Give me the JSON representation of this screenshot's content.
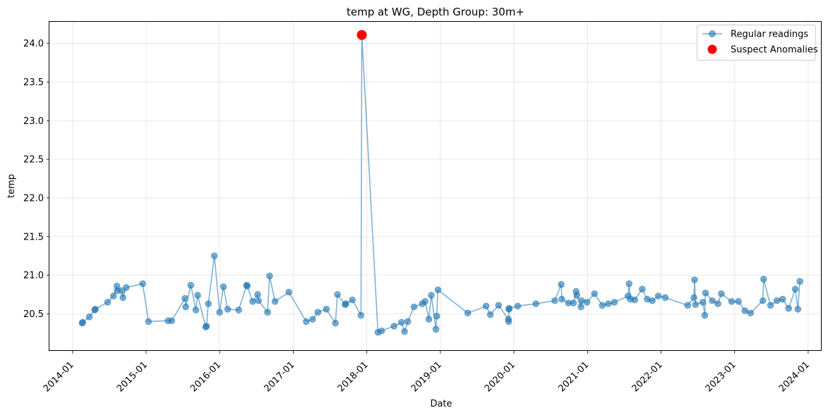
{
  "chart_data": {
    "type": "line",
    "title": "temp at WG, Depth Group: 30m+",
    "xlabel": "Date",
    "ylabel": "temp",
    "grid": true,
    "legend_position": "top-right",
    "x_axis": {
      "range": [
        "2013-09-08",
        "2024-03-08"
      ],
      "ticks": [
        "2014-01-01",
        "2015-01-01",
        "2016-01-01",
        "2017-01-01",
        "2018-01-01",
        "2019-01-01",
        "2020-01-01",
        "2021-01-01",
        "2022-01-01",
        "2023-01-01",
        "2024-01-01"
      ],
      "tick_labels": [
        "2014-01",
        "2015-01",
        "2016-01",
        "2017-01",
        "2018-01",
        "2019-01",
        "2020-01",
        "2021-01",
        "2022-01",
        "2023-01",
        "2024-01"
      ]
    },
    "y_axis": {
      "range": [
        20.02,
        24.28
      ],
      "ticks": [
        20.5,
        21.0,
        21.5,
        22.0,
        22.5,
        23.0,
        23.5,
        24.0
      ],
      "tick_labels": [
        "20.5",
        "21.0",
        "21.5",
        "22.0",
        "22.5",
        "23.0",
        "23.5",
        "24.0"
      ]
    },
    "series": [
      {
        "name": "Regular readings",
        "color": "#1f77b4",
        "style": "line-marker",
        "points": [
          [
            "2014-02-18",
            20.38
          ],
          [
            "2014-02-20",
            20.39
          ],
          [
            "2014-03-25",
            20.46
          ],
          [
            "2014-04-21",
            20.55
          ],
          [
            "2014-04-24",
            20.56
          ],
          [
            "2014-06-24",
            20.65
          ],
          [
            "2014-07-23",
            20.73
          ],
          [
            "2014-08-09",
            20.86
          ],
          [
            "2014-08-11",
            20.8
          ],
          [
            "2014-09-01",
            20.8
          ],
          [
            "2014-09-08",
            20.71
          ],
          [
            "2014-09-24",
            20.84
          ],
          [
            "2014-12-15",
            20.89
          ],
          [
            "2015-01-13",
            20.4
          ],
          [
            "2015-04-20",
            20.41
          ],
          [
            "2015-05-08",
            20.41
          ],
          [
            "2015-07-13",
            20.7
          ],
          [
            "2015-07-17",
            20.59
          ],
          [
            "2015-08-11",
            20.87
          ],
          [
            "2015-09-05",
            20.55
          ],
          [
            "2015-09-14",
            20.74
          ],
          [
            "2015-10-24",
            20.33
          ],
          [
            "2015-10-28",
            20.34
          ],
          [
            "2015-11-06",
            20.63
          ],
          [
            "2015-12-06",
            21.25
          ],
          [
            "2016-01-01",
            20.52
          ],
          [
            "2016-01-20",
            20.85
          ],
          [
            "2016-02-10",
            20.56
          ],
          [
            "2016-04-05",
            20.55
          ],
          [
            "2016-05-14",
            20.87
          ],
          [
            "2016-05-17",
            20.86
          ],
          [
            "2016-06-13",
            20.66
          ],
          [
            "2016-07-08",
            20.75
          ],
          [
            "2016-07-12",
            20.67
          ],
          [
            "2016-08-26",
            20.52
          ],
          [
            "2016-09-05",
            20.99
          ],
          [
            "2016-10-02",
            20.66
          ],
          [
            "2016-12-10",
            20.78
          ],
          [
            "2017-03-06",
            20.4
          ],
          [
            "2017-04-07",
            20.43
          ],
          [
            "2017-05-03",
            20.52
          ],
          [
            "2017-06-14",
            20.56
          ],
          [
            "2017-07-29",
            20.38
          ],
          [
            "2017-08-08",
            20.75
          ],
          [
            "2017-09-15",
            20.62
          ],
          [
            "2017-09-19",
            20.63
          ],
          [
            "2017-10-21",
            20.68
          ],
          [
            "2017-12-03",
            20.48
          ],
          [
            "2017-12-07",
            24.11
          ],
          [
            "2018-02-25",
            20.26
          ],
          [
            "2018-03-15",
            20.28
          ],
          [
            "2018-05-16",
            20.34
          ],
          [
            "2018-06-22",
            20.39
          ],
          [
            "2018-07-07",
            20.27
          ],
          [
            "2018-07-23",
            20.4
          ],
          [
            "2018-08-23",
            20.59
          ],
          [
            "2018-10-03",
            20.63
          ],
          [
            "2018-10-17",
            20.66
          ],
          [
            "2018-11-05",
            20.43
          ],
          [
            "2018-11-17",
            20.74
          ],
          [
            "2018-12-10",
            20.3
          ],
          [
            "2018-12-14",
            20.47
          ],
          [
            "2018-12-20",
            20.81
          ],
          [
            "2019-05-17",
            20.51
          ],
          [
            "2019-08-16",
            20.6
          ],
          [
            "2019-09-06",
            20.49
          ],
          [
            "2019-10-17",
            20.61
          ],
          [
            "2019-12-05",
            20.43
          ],
          [
            "2019-12-06",
            20.4
          ],
          [
            "2019-12-07",
            20.56
          ],
          [
            "2019-12-09",
            20.57
          ],
          [
            "2020-01-20",
            20.6
          ],
          [
            "2020-04-19",
            20.63
          ],
          [
            "2020-07-22",
            20.67
          ],
          [
            "2020-08-23",
            20.88
          ],
          [
            "2020-08-26",
            20.69
          ],
          [
            "2020-09-28",
            20.64
          ],
          [
            "2020-10-23",
            20.64
          ],
          [
            "2020-11-05",
            20.79
          ],
          [
            "2020-11-09",
            20.74
          ],
          [
            "2020-11-29",
            20.59
          ],
          [
            "2020-12-02",
            20.67
          ],
          [
            "2020-12-29",
            20.65
          ],
          [
            "2021-02-04",
            20.76
          ],
          [
            "2021-03-15",
            20.61
          ],
          [
            "2021-04-14",
            20.63
          ],
          [
            "2021-05-14",
            20.65
          ],
          [
            "2021-07-21",
            20.73
          ],
          [
            "2021-07-26",
            20.89
          ],
          [
            "2021-08-02",
            20.69
          ],
          [
            "2021-08-23",
            20.68
          ],
          [
            "2021-09-29",
            20.82
          ],
          [
            "2021-10-24",
            20.69
          ],
          [
            "2021-11-18",
            20.67
          ],
          [
            "2021-12-18",
            20.73
          ],
          [
            "2022-01-21",
            20.71
          ],
          [
            "2022-05-13",
            20.61
          ],
          [
            "2022-06-13",
            20.71
          ],
          [
            "2022-06-16",
            20.94
          ],
          [
            "2022-06-21",
            20.62
          ],
          [
            "2022-07-27",
            20.65
          ],
          [
            "2022-08-06",
            20.48
          ],
          [
            "2022-08-09",
            20.77
          ],
          [
            "2022-09-12",
            20.67
          ],
          [
            "2022-10-10",
            20.63
          ],
          [
            "2022-10-27",
            20.76
          ],
          [
            "2022-12-17",
            20.66
          ],
          [
            "2023-01-20",
            20.66
          ],
          [
            "2023-02-21",
            20.54
          ],
          [
            "2023-03-21",
            20.51
          ],
          [
            "2023-05-21",
            20.67
          ],
          [
            "2023-05-25",
            20.95
          ],
          [
            "2023-06-28",
            20.61
          ],
          [
            "2023-07-30",
            20.67
          ],
          [
            "2023-08-27",
            20.69
          ],
          [
            "2023-09-26",
            20.57
          ],
          [
            "2023-10-29",
            20.82
          ],
          [
            "2023-11-11",
            20.56
          ],
          [
            "2023-11-21",
            20.92
          ]
        ]
      },
      {
        "name": "Suspect Anomalies",
        "color": "#ff0000",
        "style": "marker",
        "points": [
          [
            "2017-12-07",
            24.11
          ]
        ]
      }
    ]
  }
}
